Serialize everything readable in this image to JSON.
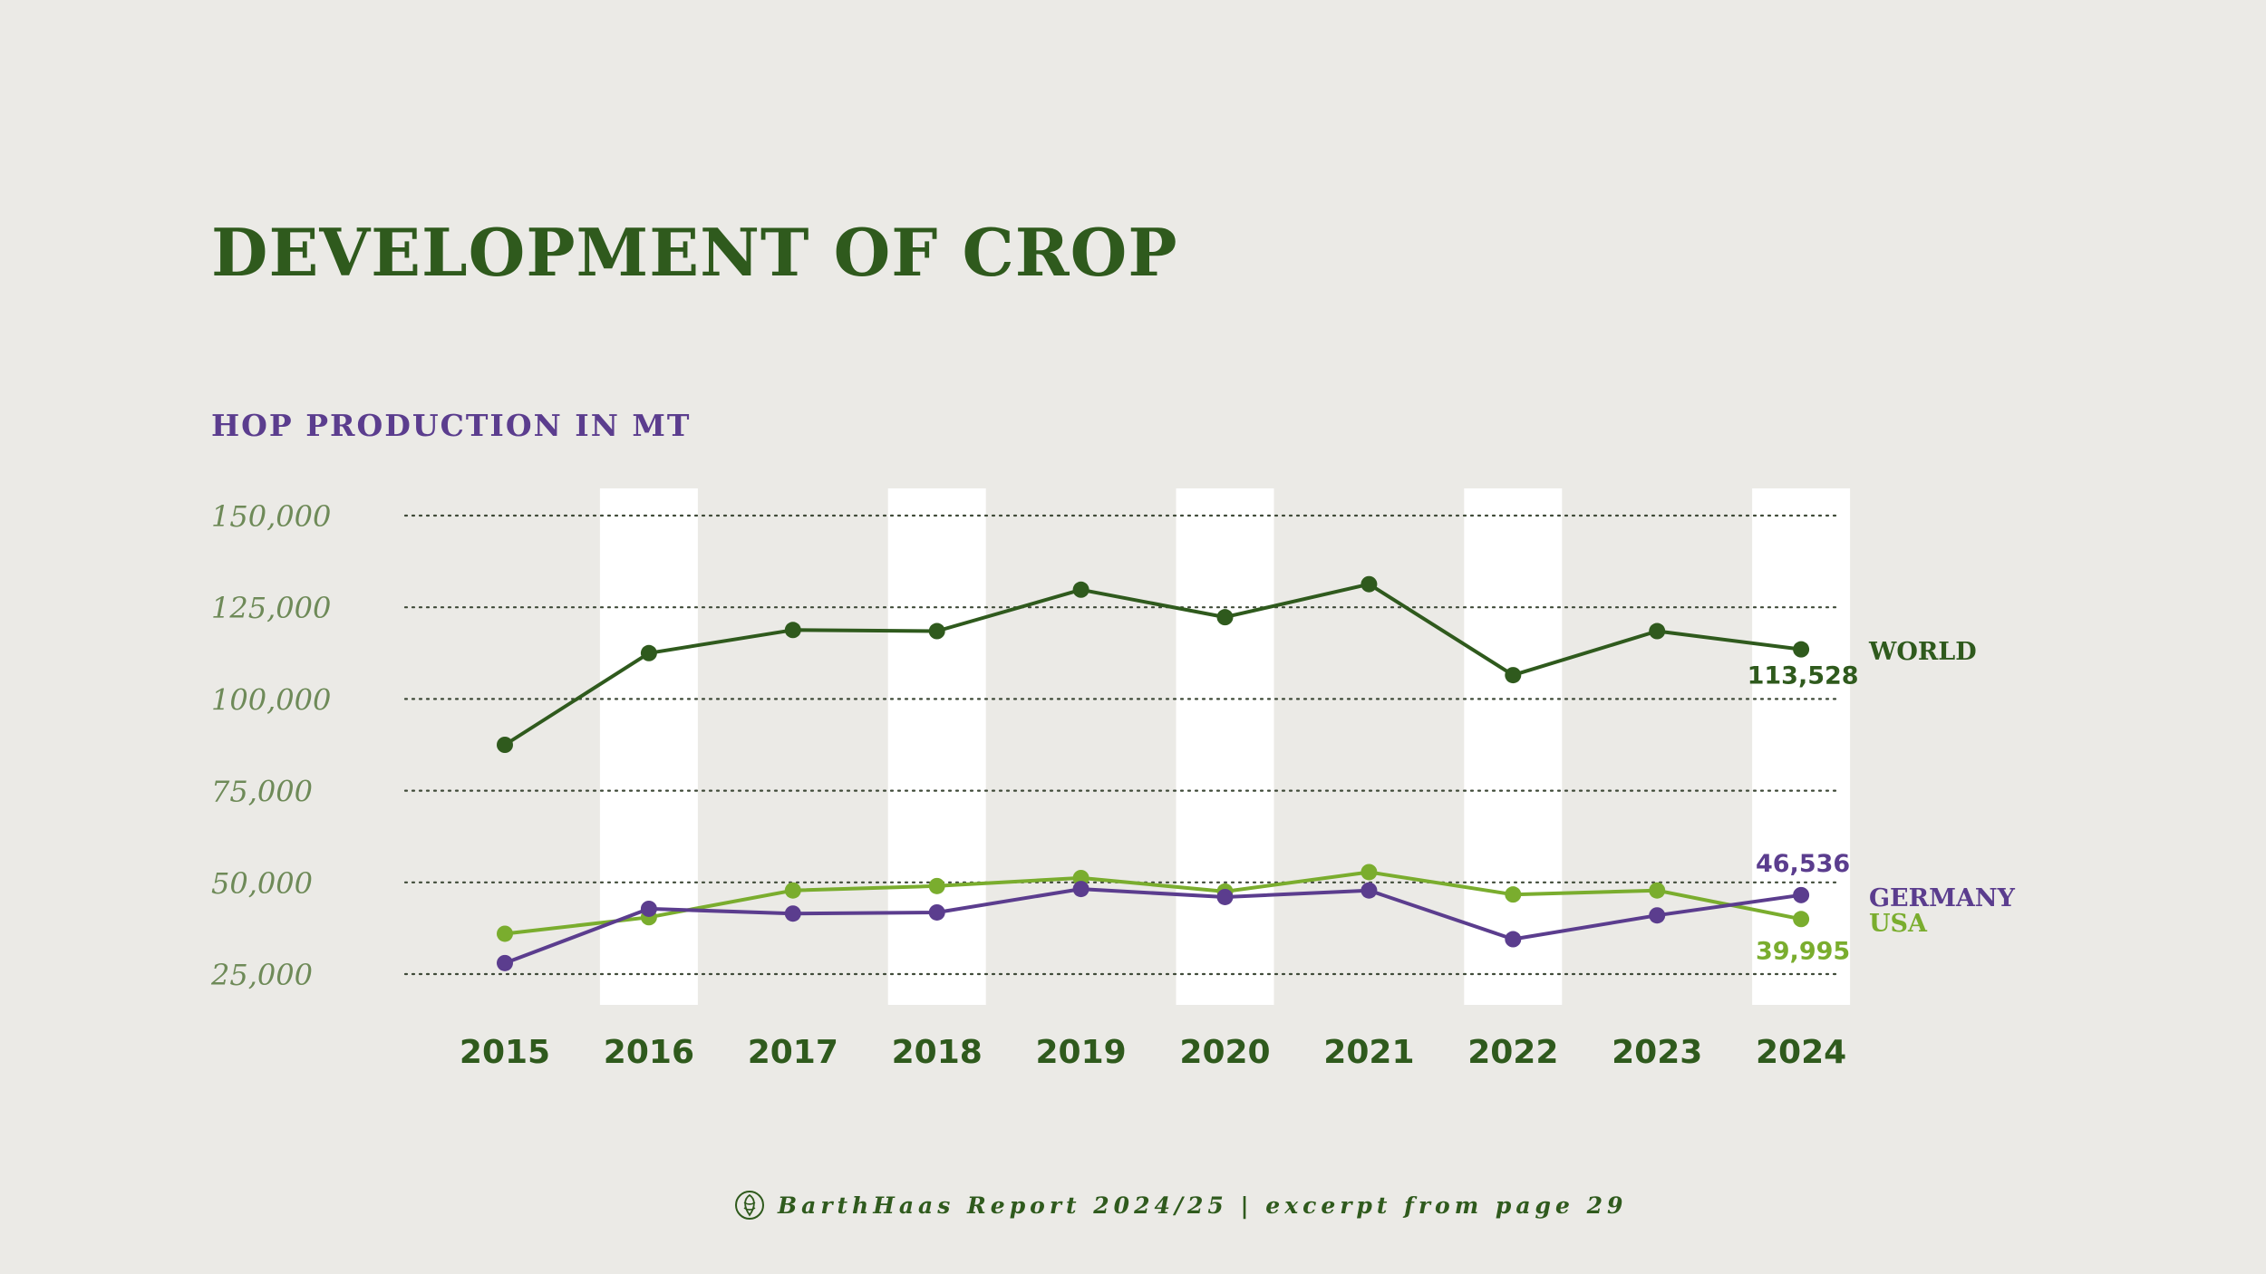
{
  "header": {
    "title": "DEVELOPMENT OF CROP",
    "subtitle": "HOP PRODUCTION IN MT"
  },
  "footer": {
    "text": "BarthHaas Report 2024/25 | excerpt from page 29",
    "icon": "hop-cone-icon"
  },
  "colors": {
    "world": "#2f5a1d",
    "germany": "#5b3d8e",
    "usa": "#7aad2e",
    "tick": "#6e8a58",
    "year": "#2f5a1d",
    "band": "#ffffff",
    "grid": "#3f4a38"
  },
  "chart_data": {
    "type": "line",
    "title": "HOP PRODUCTION IN MT",
    "xlabel": "",
    "ylabel": "",
    "categories": [
      "2015",
      "2016",
      "2017",
      "2018",
      "2019",
      "2020",
      "2021",
      "2022",
      "2023",
      "2024"
    ],
    "ylim": [
      25000,
      150000
    ],
    "yticks": [
      150000,
      125000,
      100000,
      75000,
      50000,
      25000
    ],
    "ytick_labels": [
      "150,000",
      "125,000",
      "100,000",
      "75,000",
      "50,000",
      "25,000"
    ],
    "grid": true,
    "highlighted_years": [
      "2016",
      "2018",
      "2020",
      "2022",
      "2024"
    ],
    "series": [
      {
        "name": "WORLD",
        "key": "world",
        "values": [
          87500,
          112500,
          118800,
          118500,
          129800,
          122300,
          131300,
          106500,
          118500,
          113528
        ],
        "end_label": "113,528"
      },
      {
        "name": "GERMANY",
        "key": "germany",
        "values": [
          28000,
          42800,
          41500,
          41800,
          48200,
          46000,
          47800,
          34500,
          41000,
          46536
        ],
        "end_label": "46,536"
      },
      {
        "name": "USA",
        "key": "usa",
        "values": [
          36000,
          40500,
          47800,
          49000,
          51200,
          47500,
          52800,
          46700,
          47800,
          39995
        ],
        "end_label": "39,995"
      }
    ]
  }
}
